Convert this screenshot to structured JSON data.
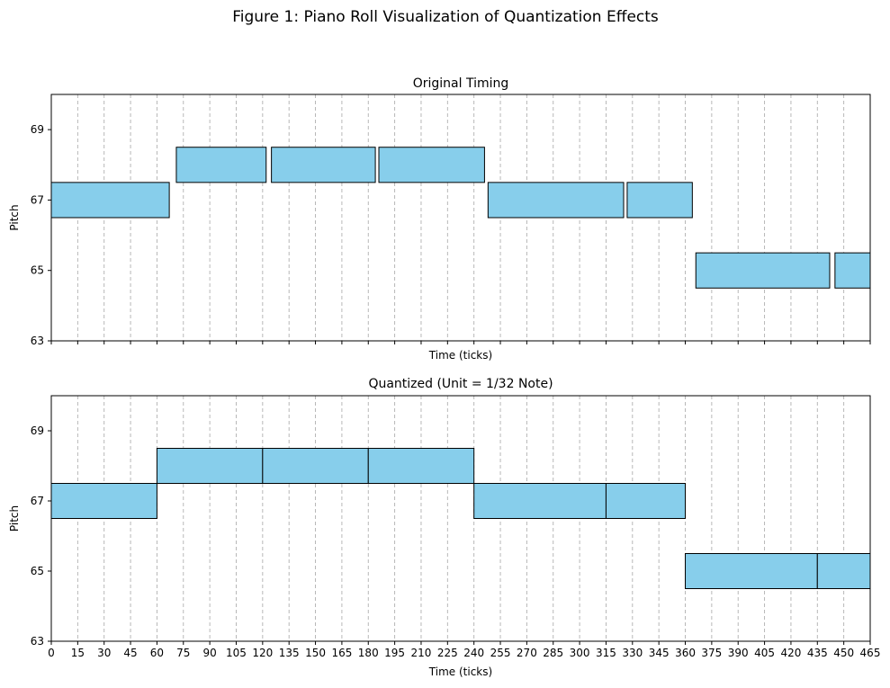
{
  "figure": {
    "title": "Figure 1: Piano Roll Visualization of Quantization Effects"
  },
  "chart_data": [
    {
      "type": "bar",
      "subtype": "piano-roll",
      "title": "Original Timing",
      "xlabel": "Time (ticks)",
      "ylabel": "Pitch",
      "xlim": [
        0,
        465
      ],
      "ylim": [
        63,
        70
      ],
      "yticks": [
        63,
        65,
        67,
        69
      ],
      "xtick_step": 15,
      "show_xtick_labels": false,
      "grid": "vertical dashed",
      "bar_color": "#87ceeb",
      "edge_color": "#000000",
      "notes": [
        {
          "pitch": 67,
          "start": 0,
          "end": 67
        },
        {
          "pitch": 68,
          "start": 71,
          "end": 122
        },
        {
          "pitch": 68,
          "start": 125,
          "end": 184
        },
        {
          "pitch": 68,
          "start": 186,
          "end": 246
        },
        {
          "pitch": 67,
          "start": 248,
          "end": 325
        },
        {
          "pitch": 67,
          "start": 327,
          "end": 364
        },
        {
          "pitch": 65,
          "start": 366,
          "end": 442
        },
        {
          "pitch": 65,
          "start": 445,
          "end": 465
        }
      ]
    },
    {
      "type": "bar",
      "subtype": "piano-roll",
      "title": "Quantized (Unit = 1/32 Note)",
      "xlabel": "Time (ticks)",
      "ylabel": "Pitch",
      "xlim": [
        0,
        465
      ],
      "ylim": [
        63,
        70
      ],
      "yticks": [
        63,
        65,
        67,
        69
      ],
      "xtick_step": 15,
      "show_xtick_labels": true,
      "grid": "vertical dashed",
      "bar_color": "#87ceeb",
      "edge_color": "#000000",
      "notes": [
        {
          "pitch": 67,
          "start": 0,
          "end": 60
        },
        {
          "pitch": 68,
          "start": 60,
          "end": 120
        },
        {
          "pitch": 68,
          "start": 120,
          "end": 180
        },
        {
          "pitch": 68,
          "start": 180,
          "end": 240
        },
        {
          "pitch": 67,
          "start": 240,
          "end": 315
        },
        {
          "pitch": 67,
          "start": 315,
          "end": 360
        },
        {
          "pitch": 65,
          "start": 360,
          "end": 435
        },
        {
          "pitch": 65,
          "start": 435,
          "end": 465
        }
      ]
    }
  ]
}
